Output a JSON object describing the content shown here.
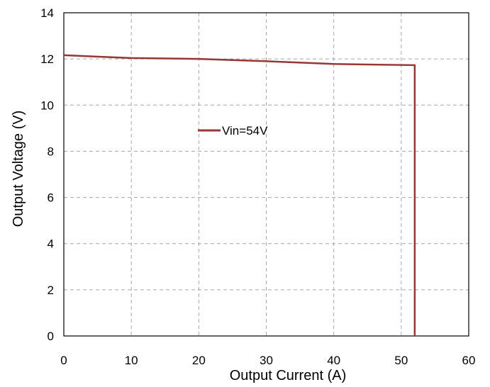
{
  "chart_data": {
    "type": "line",
    "xlabel": "Output Current (A)",
    "ylabel": "Output Voltage (V)",
    "xlim": [
      0,
      60
    ],
    "ylim": [
      0,
      14
    ],
    "xticks": [
      0,
      10,
      20,
      30,
      40,
      50,
      60
    ],
    "yticks": [
      0,
      2,
      4,
      6,
      8,
      10,
      12,
      14
    ],
    "xtick_labels": [
      "0",
      "10",
      "20",
      "30",
      "40",
      "50",
      "60"
    ],
    "ytick_labels": [
      "0",
      "2",
      "4",
      "6",
      "8",
      "10",
      "12",
      "14"
    ],
    "grid": true,
    "legend_position": "center-left",
    "series": [
      {
        "name": "Vin=54V",
        "color": "#953735",
        "x": [
          0,
          10,
          20,
          30,
          40,
          52,
          52
        ],
        "y": [
          12.16,
          12.04,
          12.0,
          11.9,
          11.78,
          11.73,
          0
        ]
      }
    ]
  }
}
